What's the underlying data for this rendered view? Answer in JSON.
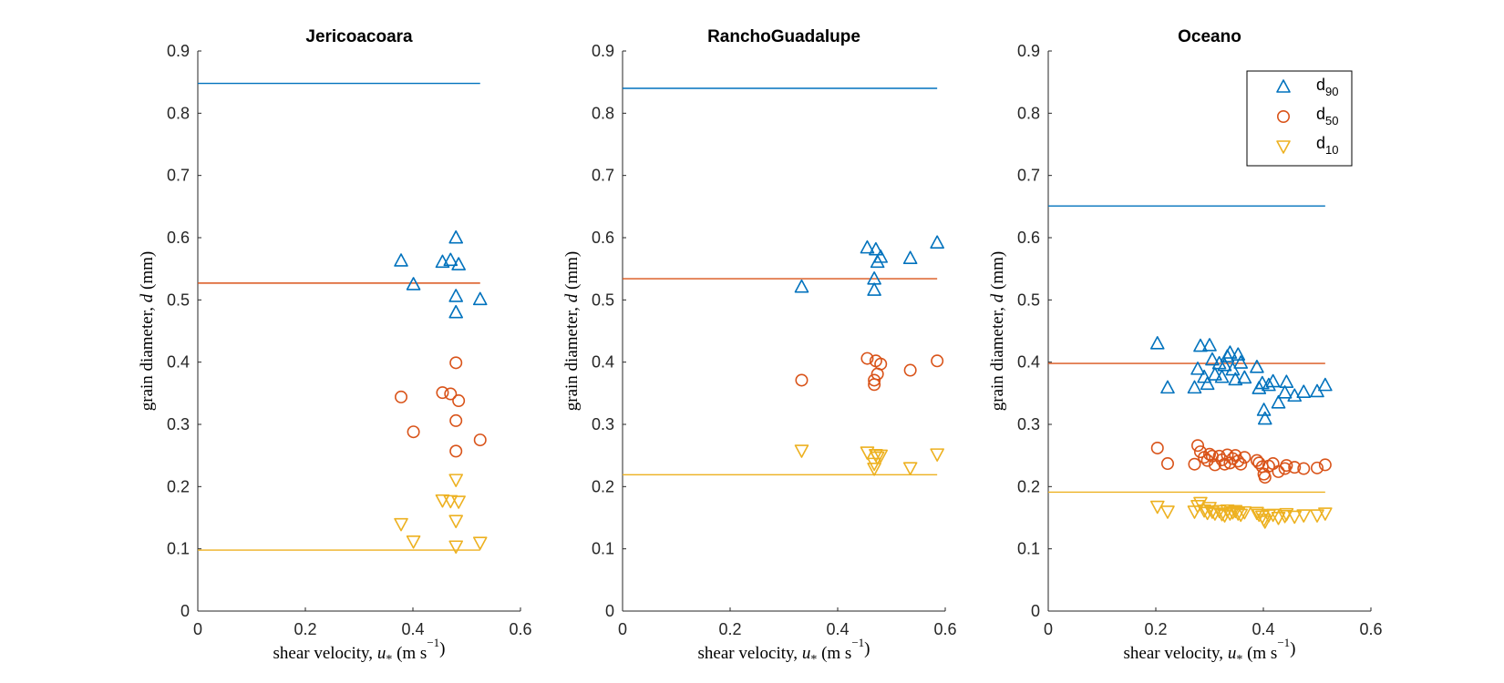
{
  "figure": {
    "colors": {
      "d90": "#0072BD",
      "d50": "#D95319",
      "d10": "#EDB120",
      "axis": "#262626"
    },
    "ylabel": "grain diameter, d (mm)",
    "xlabel": "shear velocity, u* (m s−1)",
    "legend": {
      "placement": "top-right (third panel)",
      "entries": [
        "d90",
        "d50",
        "d10"
      ]
    }
  },
  "chart_data": [
    {
      "type": "scatter",
      "title": "Jericoacoara",
      "xlim": [
        0,
        0.6
      ],
      "ylim": [
        0,
        0.9
      ],
      "xticks": [
        "0",
        "0.2",
        "0.4",
        "0.6"
      ],
      "yticks": [
        "0",
        "0.1",
        "0.2",
        "0.3",
        "0.4",
        "0.5",
        "0.6",
        "0.7",
        "0.8",
        "0.9"
      ],
      "reference_lines": {
        "d90": 0.848,
        "d50": 0.527,
        "d10": 0.098
      },
      "reference_line_x": [
        0,
        0.525
      ],
      "series": [
        {
          "name": "d90",
          "marker": "triangle-up",
          "x": [
            0.378,
            0.401,
            0.455,
            0.47,
            0.48,
            0.48,
            0.485,
            0.48,
            0.525
          ],
          "y": [
            0.562,
            0.524,
            0.56,
            0.563,
            0.599,
            0.505,
            0.556,
            0.479,
            0.5
          ]
        },
        {
          "name": "d50",
          "marker": "circle",
          "x": [
            0.378,
            0.401,
            0.455,
            0.47,
            0.48,
            0.48,
            0.485,
            0.48,
            0.525
          ],
          "y": [
            0.344,
            0.288,
            0.351,
            0.349,
            0.399,
            0.306,
            0.338,
            0.257,
            0.275
          ]
        },
        {
          "name": "d10",
          "marker": "triangle-down",
          "x": [
            0.378,
            0.401,
            0.455,
            0.47,
            0.48,
            0.48,
            0.485,
            0.48,
            0.525
          ],
          "y": [
            0.141,
            0.113,
            0.179,
            0.178,
            0.212,
            0.146,
            0.177,
            0.105,
            0.111
          ]
        }
      ]
    },
    {
      "type": "scatter",
      "title": "RanchoGuadalupe",
      "xlim": [
        0,
        0.6
      ],
      "ylim": [
        0,
        0.9
      ],
      "xticks": [
        "0",
        "0.2",
        "0.4",
        "0.6"
      ],
      "yticks": [
        "0",
        "0.1",
        "0.2",
        "0.3",
        "0.4",
        "0.5",
        "0.6",
        "0.7",
        "0.8",
        "0.9"
      ],
      "reference_lines": {
        "d90": 0.84,
        "d50": 0.534,
        "d10": 0.219
      },
      "reference_line_x": [
        0,
        0.585
      ],
      "series": [
        {
          "name": "d90",
          "marker": "triangle-up",
          "x": [
            0.333,
            0.455,
            0.468,
            0.468,
            0.471,
            0.474,
            0.48,
            0.535,
            0.585
          ],
          "y": [
            0.52,
            0.583,
            0.533,
            0.515,
            0.58,
            0.56,
            0.568,
            0.566,
            0.591
          ]
        },
        {
          "name": "d50",
          "marker": "circle",
          "x": [
            0.333,
            0.455,
            0.468,
            0.468,
            0.471,
            0.474,
            0.48,
            0.535,
            0.585
          ],
          "y": [
            0.371,
            0.406,
            0.371,
            0.364,
            0.402,
            0.381,
            0.397,
            0.387,
            0.402
          ]
        },
        {
          "name": "d10",
          "marker": "triangle-down",
          "x": [
            0.333,
            0.455,
            0.468,
            0.468,
            0.471,
            0.474,
            0.48,
            0.535,
            0.585
          ],
          "y": [
            0.259,
            0.256,
            0.238,
            0.23,
            0.252,
            0.248,
            0.251,
            0.231,
            0.253
          ]
        }
      ]
    },
    {
      "type": "scatter",
      "title": "Oceano",
      "xlim": [
        0,
        0.6
      ],
      "ylim": [
        0,
        0.9
      ],
      "xticks": [
        "0",
        "0.2",
        "0.4",
        "0.6"
      ],
      "yticks": [
        "0",
        "0.1",
        "0.2",
        "0.3",
        "0.4",
        "0.5",
        "0.6",
        "0.7",
        "0.8",
        "0.9"
      ],
      "reference_lines": {
        "d90": 0.651,
        "d50": 0.398,
        "d10": 0.191
      },
      "reference_line_x": [
        0,
        0.515
      ],
      "series": [
        {
          "name": "d90",
          "marker": "triangle-up",
          "x": [
            0.203,
            0.222,
            0.272,
            0.278,
            0.283,
            0.29,
            0.296,
            0.3,
            0.305,
            0.31,
            0.318,
            0.323,
            0.328,
            0.333,
            0.338,
            0.343,
            0.348,
            0.353,
            0.358,
            0.365,
            0.388,
            0.392,
            0.398,
            0.401,
            0.403,
            0.41,
            0.418,
            0.428,
            0.44,
            0.443,
            0.458,
            0.475,
            0.5,
            0.515
          ],
          "y": [
            0.429,
            0.358,
            0.358,
            0.388,
            0.425,
            0.375,
            0.364,
            0.426,
            0.403,
            0.379,
            0.397,
            0.375,
            0.394,
            0.408,
            0.414,
            0.387,
            0.371,
            0.411,
            0.398,
            0.374,
            0.391,
            0.357,
            0.365,
            0.322,
            0.308,
            0.362,
            0.368,
            0.334,
            0.35,
            0.367,
            0.345,
            0.351,
            0.352,
            0.362
          ]
        },
        {
          "name": "d50",
          "marker": "circle",
          "x": [
            0.203,
            0.222,
            0.272,
            0.278,
            0.283,
            0.29,
            0.296,
            0.3,
            0.305,
            0.31,
            0.318,
            0.323,
            0.328,
            0.333,
            0.338,
            0.343,
            0.348,
            0.353,
            0.358,
            0.365,
            0.388,
            0.392,
            0.398,
            0.401,
            0.403,
            0.41,
            0.418,
            0.428,
            0.44,
            0.443,
            0.458,
            0.475,
            0.5,
            0.515
          ],
          "y": [
            0.262,
            0.237,
            0.236,
            0.266,
            0.256,
            0.247,
            0.242,
            0.252,
            0.249,
            0.235,
            0.249,
            0.243,
            0.236,
            0.251,
            0.238,
            0.245,
            0.25,
            0.241,
            0.236,
            0.247,
            0.242,
            0.238,
            0.232,
            0.22,
            0.215,
            0.233,
            0.237,
            0.224,
            0.229,
            0.234,
            0.231,
            0.229,
            0.23,
            0.235
          ]
        },
        {
          "name": "d10",
          "marker": "triangle-down",
          "x": [
            0.203,
            0.222,
            0.272,
            0.278,
            0.283,
            0.29,
            0.296,
            0.3,
            0.305,
            0.31,
            0.318,
            0.323,
            0.328,
            0.333,
            0.338,
            0.343,
            0.348,
            0.353,
            0.358,
            0.365,
            0.388,
            0.392,
            0.398,
            0.401,
            0.403,
            0.41,
            0.418,
            0.428,
            0.44,
            0.443,
            0.458,
            0.475,
            0.5,
            0.515
          ],
          "y": [
            0.169,
            0.161,
            0.161,
            0.17,
            0.175,
            0.163,
            0.159,
            0.167,
            0.161,
            0.158,
            0.162,
            0.157,
            0.155,
            0.163,
            0.158,
            0.16,
            0.162,
            0.158,
            0.156,
            0.16,
            0.159,
            0.156,
            0.153,
            0.148,
            0.145,
            0.155,
            0.156,
            0.151,
            0.154,
            0.157,
            0.153,
            0.155,
            0.155,
            0.158
          ]
        }
      ]
    }
  ]
}
